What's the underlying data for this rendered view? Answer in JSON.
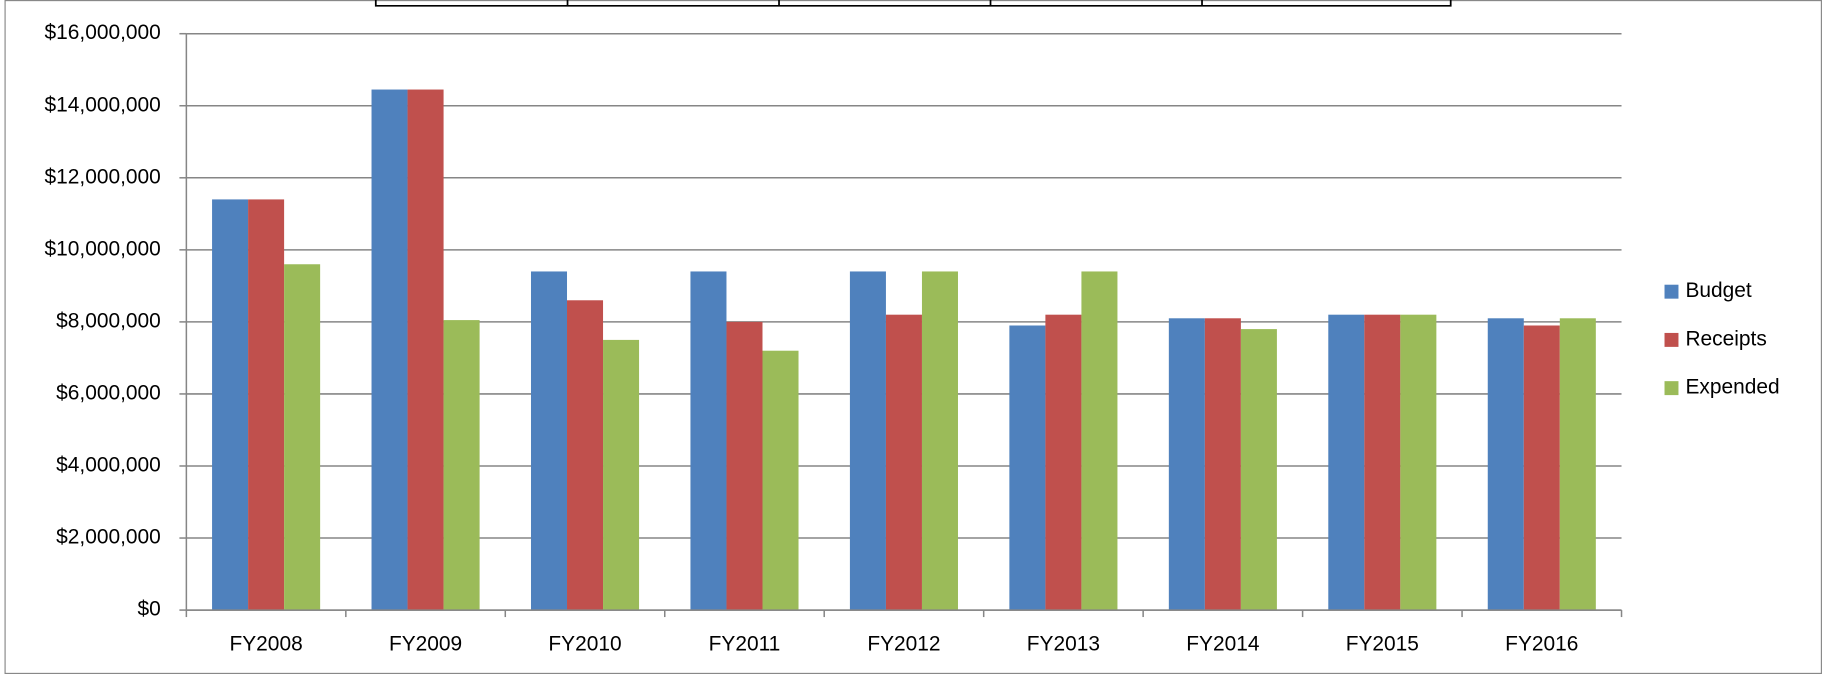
{
  "chart_data": {
    "type": "bar",
    "categories": [
      "FY2008",
      "FY2009",
      "FY2010",
      "FY2011",
      "FY2012",
      "FY2013",
      "FY2014",
      "FY2015",
      "FY2016"
    ],
    "series": [
      {
        "name": "Budget",
        "color": "#4f81bd",
        "values": [
          11400000,
          14450000,
          9400000,
          9400000,
          9400000,
          7900000,
          8100000,
          8200000,
          8100000
        ]
      },
      {
        "name": "Receipts",
        "color": "#c0504d",
        "values": [
          11400000,
          14450000,
          8600000,
          8000000,
          8200000,
          8200000,
          8100000,
          8200000,
          7900000
        ]
      },
      {
        "name": "Expended",
        "color": "#9bbb59",
        "values": [
          9600000,
          8050000,
          7500000,
          7200000,
          9400000,
          9400000,
          7800000,
          8200000,
          8100000
        ]
      }
    ],
    "ylim": [
      0,
      16000000
    ],
    "yticks": [
      {
        "value": 0,
        "label": "$0"
      },
      {
        "value": 2000000,
        "label": "$2,000,000"
      },
      {
        "value": 4000000,
        "label": "$4,000,000"
      },
      {
        "value": 6000000,
        "label": "$6,000,000"
      },
      {
        "value": 8000000,
        "label": "$8,000,000"
      },
      {
        "value": 10000000,
        "label": "$10,000,000"
      },
      {
        "value": 12000000,
        "label": "$12,000,000"
      },
      {
        "value": 14000000,
        "label": "$14,000,000"
      },
      {
        "value": 16000000,
        "label": "$16,000,000"
      }
    ],
    "grid": true,
    "legend": "right"
  }
}
